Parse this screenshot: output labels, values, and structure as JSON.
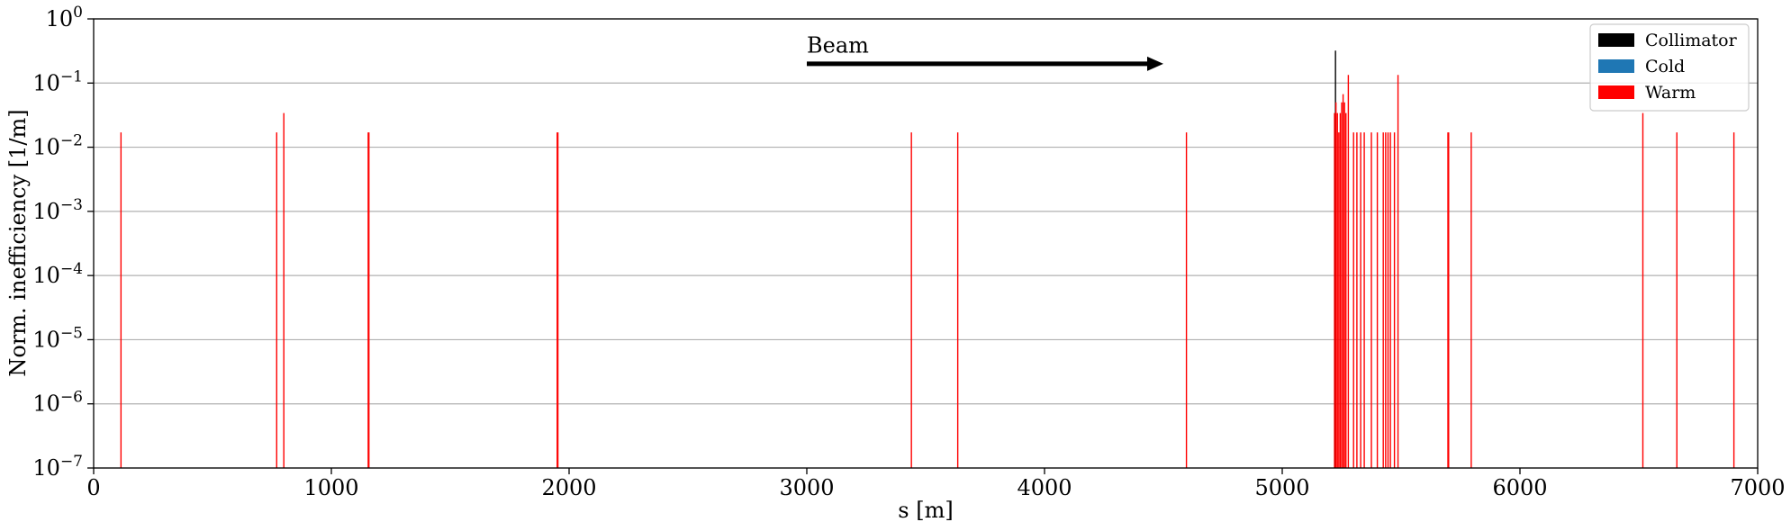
{
  "chart_data": {
    "type": "bar",
    "title": "",
    "xlabel": "s [m]",
    "ylabel": "Norm. inefficiency [1/m]",
    "xlim": [
      0,
      7000
    ],
    "ylim": [
      1e-07,
      1
    ],
    "yscale": "log",
    "grid": "horizontal",
    "legend_position": "top-right",
    "x_ticks": [
      "0",
      "1000",
      "2000",
      "3000",
      "4000",
      "5000",
      "6000",
      "7000"
    ],
    "x_tick_values": [
      0,
      1000,
      2000,
      3000,
      4000,
      5000,
      6000,
      7000
    ],
    "y_ticks": [
      {
        "value": 1e-07,
        "base": "10",
        "exp": "−7"
      },
      {
        "value": 1e-06,
        "base": "10",
        "exp": "−6"
      },
      {
        "value": 1e-05,
        "base": "10",
        "exp": "−5"
      },
      {
        "value": 0.0001,
        "base": "10",
        "exp": "−4"
      },
      {
        "value": 0.001,
        "base": "10",
        "exp": "−3"
      },
      {
        "value": 0.01,
        "base": "10",
        "exp": "−2"
      },
      {
        "value": 0.1,
        "base": "10",
        "exp": "−1"
      },
      {
        "value": 1,
        "base": "10",
        "exp": "0"
      }
    ],
    "annotation": {
      "text": "Beam",
      "arrow_from_x": 3000,
      "arrow_to_x": 4500,
      "arrow_y": 0.2,
      "text_y": 0.3
    },
    "series": [
      {
        "name": "Collimator",
        "color": "#000000",
        "points": [
          {
            "x": 5224,
            "y": 0.32
          }
        ]
      },
      {
        "name": "Cold",
        "color": "#1f77b4",
        "points": []
      },
      {
        "name": "Warm",
        "color": "#ff0000",
        "points": [
          {
            "x": 115,
            "y": 0.017
          },
          {
            "x": 770,
            "y": 0.017
          },
          {
            "x": 800,
            "y": 0.034
          },
          {
            "x": 1155,
            "y": 0.017
          },
          {
            "x": 1158,
            "y": 0.017
          },
          {
            "x": 1950,
            "y": 0.017
          },
          {
            "x": 1953,
            "y": 0.017
          },
          {
            "x": 3440,
            "y": 0.017
          },
          {
            "x": 3635,
            "y": 0.017
          },
          {
            "x": 4597,
            "y": 0.017
          },
          {
            "x": 5220,
            "y": 0.034
          },
          {
            "x": 5226,
            "y": 0.05
          },
          {
            "x": 5232,
            "y": 0.034
          },
          {
            "x": 5238,
            "y": 0.017
          },
          {
            "x": 5244,
            "y": 0.034
          },
          {
            "x": 5250,
            "y": 0.05
          },
          {
            "x": 5256,
            "y": 0.067
          },
          {
            "x": 5262,
            "y": 0.05
          },
          {
            "x": 5268,
            "y": 0.034
          },
          {
            "x": 5278,
            "y": 0.134
          },
          {
            "x": 5300,
            "y": 0.017
          },
          {
            "x": 5314,
            "y": 0.017
          },
          {
            "x": 5330,
            "y": 0.017
          },
          {
            "x": 5345,
            "y": 0.017
          },
          {
            "x": 5375,
            "y": 0.017
          },
          {
            "x": 5400,
            "y": 0.017
          },
          {
            "x": 5425,
            "y": 0.017
          },
          {
            "x": 5435,
            "y": 0.017
          },
          {
            "x": 5445,
            "y": 0.017
          },
          {
            "x": 5455,
            "y": 0.017
          },
          {
            "x": 5472,
            "y": 0.017
          },
          {
            "x": 5487,
            "y": 0.134
          },
          {
            "x": 5697,
            "y": 0.017
          },
          {
            "x": 5700,
            "y": 0.017
          },
          {
            "x": 5795,
            "y": 0.017
          },
          {
            "x": 6517,
            "y": 0.034
          },
          {
            "x": 6660,
            "y": 0.017
          },
          {
            "x": 6900,
            "y": 0.017
          }
        ]
      }
    ]
  }
}
